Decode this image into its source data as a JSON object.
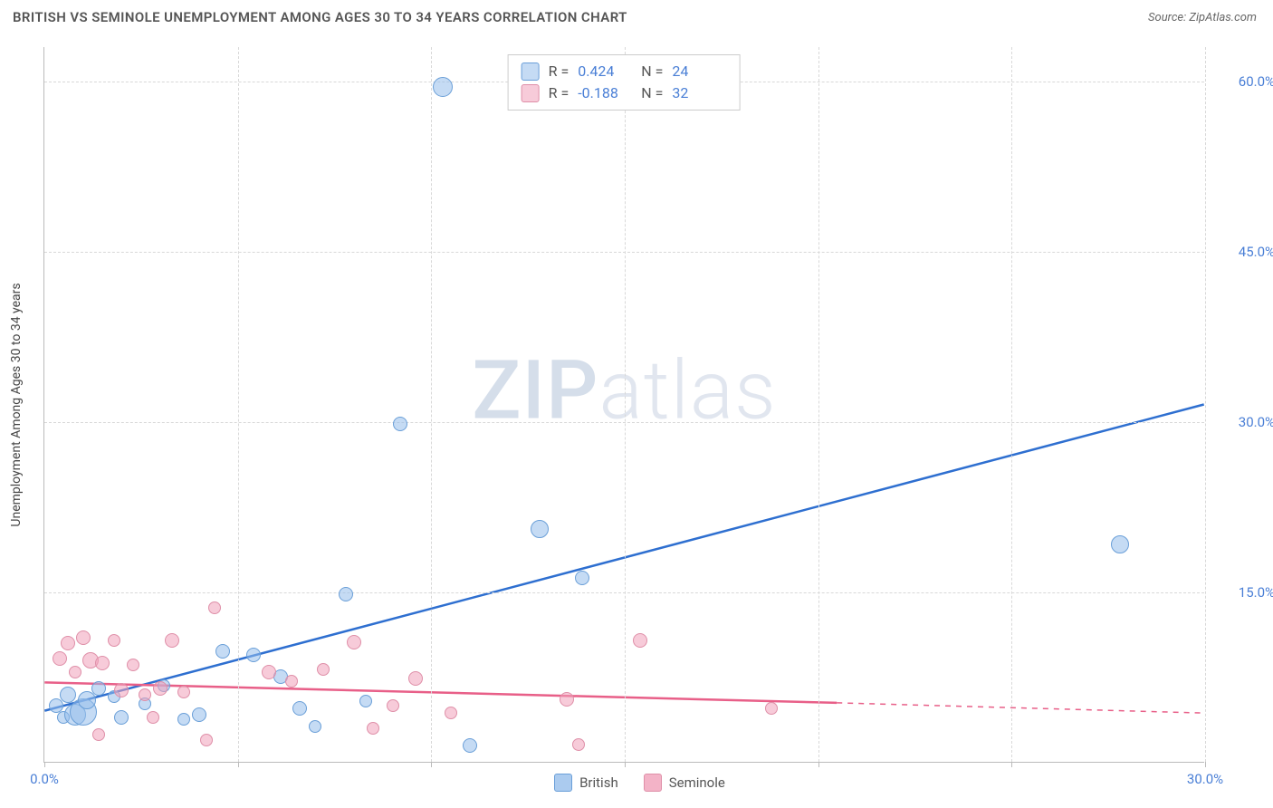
{
  "title": "BRITISH VS SEMINOLE UNEMPLOYMENT AMONG AGES 30 TO 34 YEARS CORRELATION CHART",
  "source": "Source: ZipAtlas.com",
  "watermark_bold": "ZIP",
  "watermark_light": "atlas",
  "chart": {
    "type": "scatter",
    "y_axis_title": "Unemployment Among Ages 30 to 34 years",
    "xlim": [
      0,
      30
    ],
    "ylim": [
      0,
      63
    ],
    "x_ticks": [
      0,
      5,
      10,
      15,
      20,
      25,
      30
    ],
    "x_tick_labels": [
      "0.0%",
      "",
      "",
      "",
      "",
      "",
      "30.0%"
    ],
    "y_ticks": [
      15,
      30,
      45,
      60
    ],
    "y_tick_labels": [
      "15.0%",
      "30.0%",
      "45.0%",
      "60.0%"
    ],
    "grid_color": "#d8d8d8",
    "background_color": "#ffffff",
    "axis_label_color": "#4a7fd6",
    "series": [
      {
        "name": "British",
        "color_fill": "rgba(150,190,235,0.55)",
        "color_stroke": "#6a9fd8",
        "line_color": "#2e6fd0",
        "r_value": "0.424",
        "n_value": "24",
        "regression": {
          "x1": 0,
          "y1": 4.5,
          "x2": 30,
          "y2": 31.5
        },
        "points": [
          {
            "x": 0.3,
            "y": 5,
            "r": 8
          },
          {
            "x": 0.5,
            "y": 4,
            "r": 7
          },
          {
            "x": 0.6,
            "y": 6,
            "r": 9
          },
          {
            "x": 0.8,
            "y": 4.2,
            "r": 12
          },
          {
            "x": 1.0,
            "y": 4.5,
            "r": 15
          },
          {
            "x": 1.1,
            "y": 5.5,
            "r": 10
          },
          {
            "x": 1.4,
            "y": 6.5,
            "r": 8
          },
          {
            "x": 1.8,
            "y": 5.8,
            "r": 7
          },
          {
            "x": 2.0,
            "y": 4.0,
            "r": 8
          },
          {
            "x": 2.6,
            "y": 5.2,
            "r": 7
          },
          {
            "x": 3.1,
            "y": 6.8,
            "r": 7
          },
          {
            "x": 3.6,
            "y": 3.8,
            "r": 7
          },
          {
            "x": 4.0,
            "y": 4.2,
            "r": 8
          },
          {
            "x": 4.6,
            "y": 9.8,
            "r": 8
          },
          {
            "x": 5.4,
            "y": 9.5,
            "r": 8
          },
          {
            "x": 6.1,
            "y": 7.6,
            "r": 8
          },
          {
            "x": 6.6,
            "y": 4.8,
            "r": 8
          },
          {
            "x": 7.0,
            "y": 3.2,
            "r": 7
          },
          {
            "x": 7.8,
            "y": 14.8,
            "r": 8
          },
          {
            "x": 8.3,
            "y": 5.4,
            "r": 7
          },
          {
            "x": 9.2,
            "y": 29.8,
            "r": 8
          },
          {
            "x": 10.3,
            "y": 59.5,
            "r": 11
          },
          {
            "x": 11.0,
            "y": 1.5,
            "r": 8
          },
          {
            "x": 12.8,
            "y": 20.6,
            "r": 10
          },
          {
            "x": 13.9,
            "y": 16.3,
            "r": 8
          },
          {
            "x": 27.8,
            "y": 19.2,
            "r": 10
          }
        ]
      },
      {
        "name": "Seminole",
        "color_fill": "rgba(240,160,185,0.55)",
        "color_stroke": "#df8fa8",
        "line_color": "#e85f88",
        "r_value": "-0.188",
        "n_value": "32",
        "regression_solid": {
          "x1": 0,
          "y1": 7.0,
          "x2": 20.5,
          "y2": 5.2
        },
        "regression_dash": {
          "x1": 20.5,
          "y1": 5.2,
          "x2": 30,
          "y2": 4.3
        },
        "points": [
          {
            "x": 0.4,
            "y": 9.2,
            "r": 8
          },
          {
            "x": 0.6,
            "y": 10.5,
            "r": 8
          },
          {
            "x": 0.8,
            "y": 8.0,
            "r": 7
          },
          {
            "x": 1.0,
            "y": 11.0,
            "r": 8
          },
          {
            "x": 1.2,
            "y": 9.0,
            "r": 9
          },
          {
            "x": 1.4,
            "y": 2.5,
            "r": 7
          },
          {
            "x": 1.5,
            "y": 8.8,
            "r": 8
          },
          {
            "x": 1.8,
            "y": 10.8,
            "r": 7
          },
          {
            "x": 2.0,
            "y": 6.4,
            "r": 8
          },
          {
            "x": 2.3,
            "y": 8.6,
            "r": 7
          },
          {
            "x": 2.6,
            "y": 6.0,
            "r": 7
          },
          {
            "x": 2.8,
            "y": 4.0,
            "r": 7
          },
          {
            "x": 3.0,
            "y": 6.5,
            "r": 8
          },
          {
            "x": 3.3,
            "y": 10.8,
            "r": 8
          },
          {
            "x": 3.6,
            "y": 6.2,
            "r": 7
          },
          {
            "x": 4.2,
            "y": 2.0,
            "r": 7
          },
          {
            "x": 4.4,
            "y": 13.6,
            "r": 7
          },
          {
            "x": 5.8,
            "y": 8.0,
            "r": 8
          },
          {
            "x": 6.4,
            "y": 7.2,
            "r": 7
          },
          {
            "x": 7.2,
            "y": 8.2,
            "r": 7
          },
          {
            "x": 8.0,
            "y": 10.6,
            "r": 8
          },
          {
            "x": 8.5,
            "y": 3.0,
            "r": 7
          },
          {
            "x": 9.0,
            "y": 5.0,
            "r": 7
          },
          {
            "x": 9.6,
            "y": 7.4,
            "r": 8
          },
          {
            "x": 10.5,
            "y": 4.4,
            "r": 7
          },
          {
            "x": 13.5,
            "y": 5.6,
            "r": 8
          },
          {
            "x": 13.8,
            "y": 1.6,
            "r": 7
          },
          {
            "x": 15.4,
            "y": 10.8,
            "r": 8
          },
          {
            "x": 18.8,
            "y": 4.8,
            "r": 7
          }
        ]
      }
    ],
    "legend_bottom": [
      {
        "label": "British",
        "fill": "rgba(150,190,235,0.8)",
        "stroke": "#6a9fd8"
      },
      {
        "label": "Seminole",
        "fill": "rgba(240,160,185,0.8)",
        "stroke": "#df8fa8"
      }
    ]
  }
}
